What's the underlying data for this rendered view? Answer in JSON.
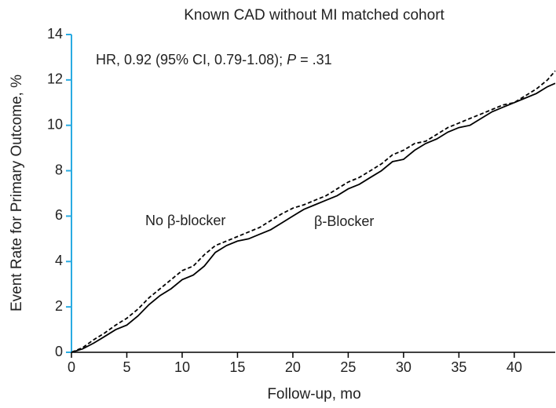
{
  "chart_data": {
    "type": "line",
    "title": "Known CAD without MI matched cohort",
    "annotation": [
      "HR, 0.92 (95% CI, 0.79-1.08); ",
      "P",
      " = .31"
    ],
    "xlabel": "Follow-up, mo",
    "ylabel": "Event Rate for Primary Outcome, %",
    "x": [
      0,
      1,
      2,
      3,
      4,
      5,
      6,
      7,
      8,
      9,
      10,
      11,
      12,
      13,
      14,
      15,
      16,
      17,
      18,
      19,
      20,
      21,
      22,
      23,
      24,
      25,
      26,
      27,
      28,
      29,
      30,
      31,
      32,
      33,
      34,
      35,
      36,
      37,
      38,
      39,
      40,
      41,
      42,
      43,
      43.7
    ],
    "series": [
      {
        "name": "β-Blocker",
        "color": "#000000",
        "dash": false,
        "values": [
          0,
          0.15,
          0.4,
          0.7,
          1.0,
          1.2,
          1.6,
          2.1,
          2.5,
          2.8,
          3.2,
          3.4,
          3.8,
          4.4,
          4.7,
          4.9,
          5.0,
          5.2,
          5.4,
          5.7,
          6.0,
          6.3,
          6.5,
          6.7,
          6.9,
          7.2,
          7.4,
          7.7,
          8.0,
          8.4,
          8.5,
          8.9,
          9.2,
          9.4,
          9.7,
          9.9,
          10.0,
          10.3,
          10.6,
          10.8,
          11.0,
          11.2,
          11.4,
          11.7,
          11.85
        ]
      },
      {
        "name": "No β-blocker",
        "color": "#000000",
        "dash": true,
        "values": [
          0,
          0.2,
          0.55,
          0.85,
          1.2,
          1.5,
          1.9,
          2.4,
          2.8,
          3.2,
          3.6,
          3.8,
          4.3,
          4.7,
          4.9,
          5.1,
          5.3,
          5.5,
          5.8,
          6.1,
          6.35,
          6.5,
          6.7,
          6.9,
          7.2,
          7.5,
          7.7,
          8.0,
          8.3,
          8.7,
          8.9,
          9.2,
          9.3,
          9.6,
          9.9,
          10.1,
          10.3,
          10.5,
          10.7,
          10.9,
          11.0,
          11.3,
          11.6,
          12.0,
          12.4
        ]
      }
    ],
    "xlim": [
      0,
      43.7
    ],
    "ylim": [
      0,
      14
    ],
    "xticks": [
      0,
      5,
      10,
      15,
      20,
      25,
      30,
      35,
      40
    ],
    "yticks": [
      0,
      2,
      4,
      6,
      8,
      10,
      12,
      14
    ],
    "y_axis_color": "#29abe2"
  }
}
